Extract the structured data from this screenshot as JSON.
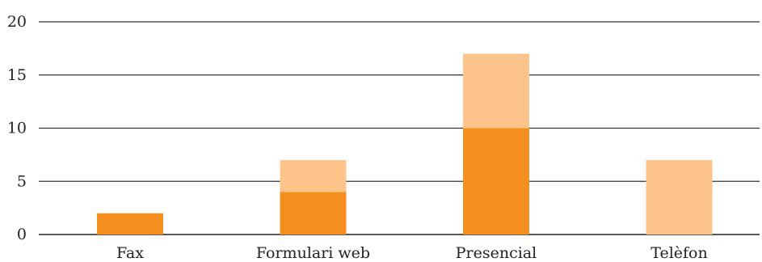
{
  "chart_data": {
    "type": "bar",
    "stacked": true,
    "categories": [
      "Fax",
      "Formulari web",
      "Presencial",
      "Telèfon"
    ],
    "series": [
      {
        "values": [
          2,
          4,
          10,
          0
        ],
        "color": "#f5901e"
      },
      {
        "values": [
          0,
          3,
          7,
          7
        ],
        "color": "#fdc48b"
      }
    ],
    "yticks": [
      0,
      5,
      10,
      15,
      20
    ],
    "ylim": [
      0,
      20
    ],
    "grid": true,
    "legend": "none"
  }
}
